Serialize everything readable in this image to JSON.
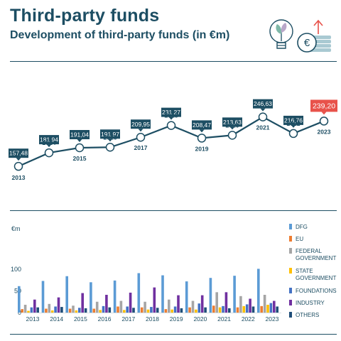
{
  "header": {
    "title": "Third-party funds",
    "subtitle": "Development of third-party funds (in €m)"
  },
  "icons": [
    "lightbulb-plant-icon",
    "euro-coins-growth-icon"
  ],
  "colors": {
    "primary": "#1d4e63",
    "highlight": "#e8524a",
    "dfg": "#5b9bd5",
    "eu": "#ed7d31",
    "federal": "#a5a5a5",
    "state": "#ffc000",
    "foundations": "#4472c4",
    "industry": "#7030a0",
    "others": "#1f4e79"
  },
  "chart_data": [
    {
      "type": "line",
      "x": [
        "2013",
        "2014",
        "2015",
        "2016",
        "2017",
        "2018",
        "2019",
        "2020",
        "2021",
        "2022",
        "2023"
      ],
      "values": [
        157.48,
        181.94,
        191.04,
        191.97,
        209.95,
        231.27,
        208.47,
        213.63,
        246.63,
        216.76,
        239.2
      ],
      "labels": [
        "157,48",
        "181,94",
        "191,04",
        "191,97",
        "209,95",
        "231,27",
        "208,47",
        "213,63",
        "246,63",
        "216,76",
        "239,20"
      ],
      "highlight_index": 10
    },
    {
      "type": "bar",
      "categories": [
        "2013",
        "2014",
        "2015",
        "2016",
        "2017",
        "2018",
        "2019",
        "2020",
        "2021",
        "2022",
        "2023"
      ],
      "ylabel": "€m",
      "ylim": [
        0,
        100
      ],
      "yticks": [
        "0",
        "50",
        "100"
      ],
      "legend_position": "right",
      "series": [
        {
          "name": "DFG",
          "color": "#5b9bd5",
          "values": [
            61,
            73,
            84,
            70,
            74,
            91,
            86,
            72,
            80,
            85,
            101
          ]
        },
        {
          "name": "EU",
          "color": "#ed7d31",
          "values": [
            8,
            9,
            9,
            9,
            14,
            12,
            8,
            12,
            16,
            12,
            15
          ]
        },
        {
          "name": "FEDERAL GOVERNMENT",
          "color": "#a5a5a5",
          "values": [
            18,
            20,
            16,
            25,
            27,
            25,
            30,
            27,
            47,
            38,
            41
          ]
        },
        {
          "name": "STATE GOVERNMENT",
          "color": "#ffc000",
          "values": [
            4,
            5,
            5,
            6,
            6,
            7,
            7,
            7,
            12,
            15,
            18
          ]
        },
        {
          "name": "FOUNDATIONS",
          "color": "#4472c4",
          "values": [
            12,
            14,
            11,
            15,
            14,
            13,
            14,
            21,
            15,
            19,
            22
          ]
        },
        {
          "name": "INDUSTRY",
          "color": "#7030a0",
          "values": [
            30,
            35,
            45,
            41,
            46,
            58,
            40,
            40,
            47,
            32,
            27
          ]
        },
        {
          "name": "OTHERS",
          "color": "#1f4e79",
          "values": [
            12,
            13,
            10,
            12,
            11,
            11,
            10,
            12,
            10,
            14,
            14
          ]
        }
      ]
    }
  ]
}
